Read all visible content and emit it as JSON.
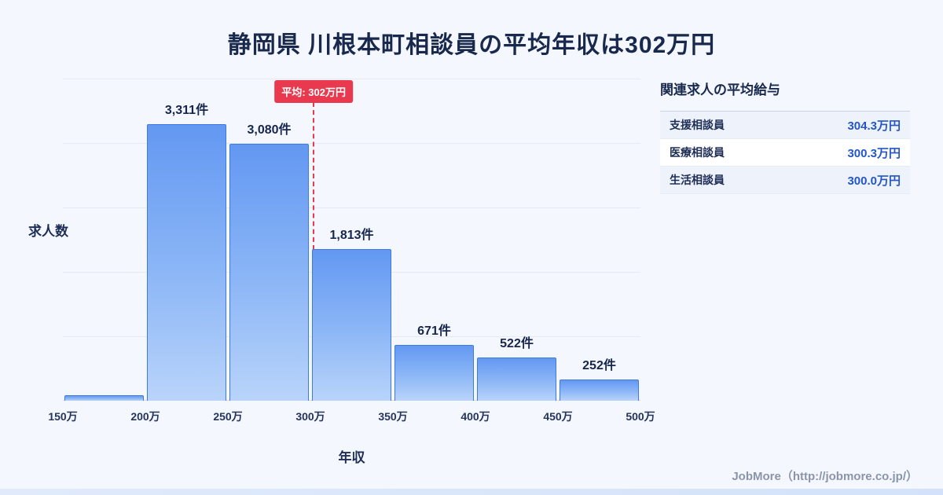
{
  "page": {
    "title": "静岡県 川根本町相談員の平均年収は302万円",
    "footer": "JobMore（http://jobmore.co.jp/）"
  },
  "chart_data": {
    "type": "bar",
    "title": "静岡県 川根本町相談員の平均年収は302万円",
    "xlabel": "年収",
    "ylabel": "求人数",
    "x_range": [
      150,
      500
    ],
    "bin_width": 50,
    "x_ticks": [
      "150万",
      "200万",
      "250万",
      "300万",
      "350万",
      "400万",
      "450万",
      "500万"
    ],
    "categories": [
      "150万-200万",
      "200万-250万",
      "250万-300万",
      "300万-350万",
      "350万-400万",
      "400万-450万",
      "450万-500万"
    ],
    "values": [
      66,
      3311,
      3080,
      1813,
      671,
      522,
      252
    ],
    "labels": [
      "",
      "3,311件",
      "3,080件",
      "1,813件",
      "671件",
      "522件",
      "252件"
    ],
    "ymax": 3311,
    "grid": "horizontal",
    "average": {
      "value": 302,
      "label": "平均: 302万円"
    }
  },
  "side_panel": {
    "heading": "関連求人の平均給与",
    "rows": [
      {
        "label": "支援相談員",
        "value": "304.3万円"
      },
      {
        "label": "医療相談員",
        "value": "300.3万円"
      },
      {
        "label": "生活相談員",
        "value": "300.0万円"
      }
    ]
  },
  "colors": {
    "background": "#f4f7fd",
    "title": "#19294e",
    "bar_top": "#6398f2",
    "bar_bottom": "#b9d4fa",
    "bar_border": "#3e79e8",
    "average_accent": "#e8394e",
    "table_value": "#2456c8"
  }
}
